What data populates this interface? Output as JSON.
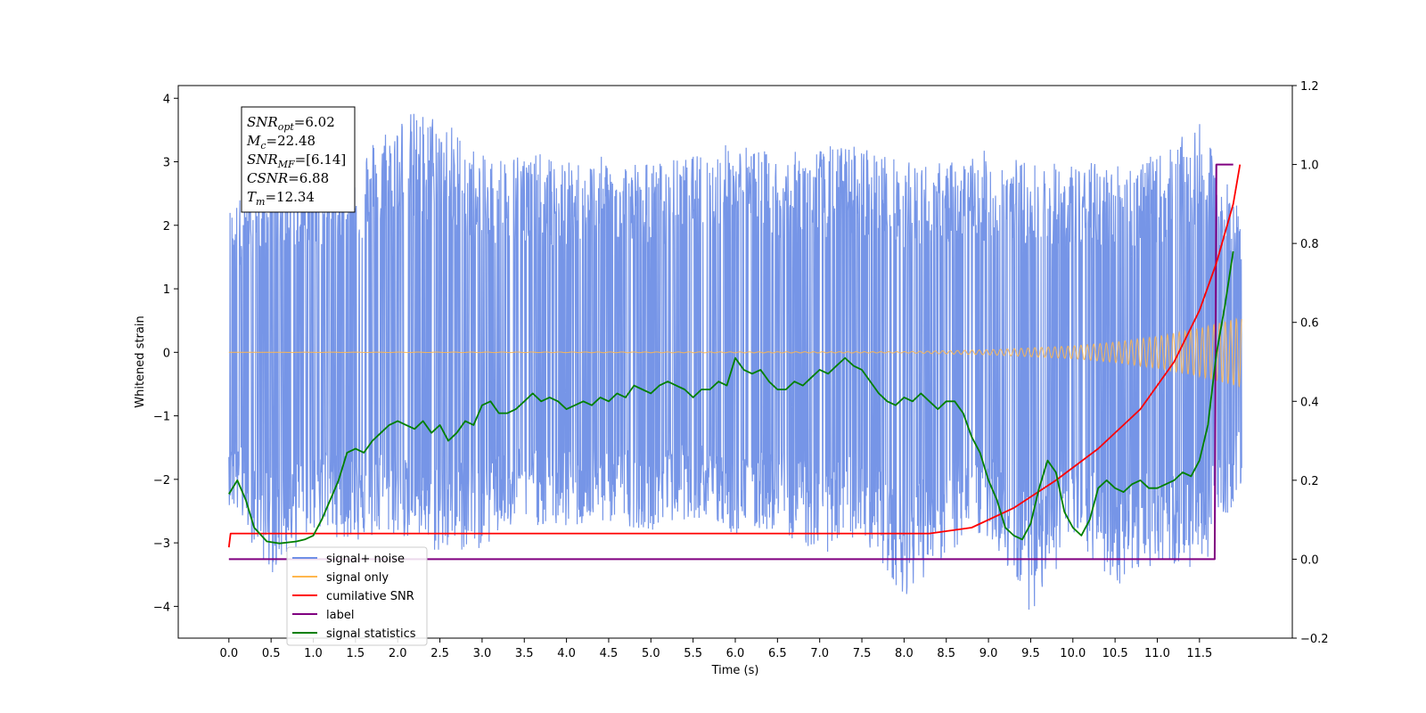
{
  "chart_data": {
    "type": "line",
    "xlabel": "Time (s)",
    "ylabel": "Whitened strain",
    "xlim": [
      -0.6,
      12.6
    ],
    "ylim": [
      -4.5,
      4.2
    ],
    "y2lim": [
      -0.2,
      1.2
    ],
    "x_ticks": [
      0.0,
      0.5,
      1.0,
      1.5,
      2.0,
      2.5,
      3.0,
      3.5,
      4.0,
      4.5,
      5.0,
      5.5,
      6.0,
      6.5,
      7.0,
      7.5,
      8.0,
      8.5,
      9.0,
      9.5,
      10.0,
      10.5,
      11.0,
      11.5
    ],
    "x_tick_labels": [
      "0.0",
      "0.5",
      "1.0",
      "1.5",
      "2.0",
      "2.5",
      "3.0",
      "3.5",
      "4.0",
      "4.5",
      "5.0",
      "5.5",
      "6.0",
      "6.5",
      "7.0",
      "7.5",
      "8.0",
      "8.5",
      "9.0",
      "9.5",
      "10.0",
      "10.5",
      "11.0",
      "11.5"
    ],
    "y_ticks": [
      -4,
      -3,
      -2,
      -1,
      0,
      1,
      2,
      3,
      4
    ],
    "y_tick_labels": [
      "−4",
      "−3",
      "−2",
      "−1",
      "0",
      "1",
      "2",
      "3",
      "4"
    ],
    "y2_ticks": [
      -0.2,
      0.0,
      0.2,
      0.4,
      0.6,
      0.8,
      1.0,
      1.2
    ],
    "y2_tick_labels": [
      "−0.2",
      "0.0",
      "0.2",
      "0.4",
      "0.6",
      "0.8",
      "1.0",
      "1.2"
    ],
    "grid": false,
    "legend_position": "lower-left",
    "series": [
      {
        "name": "signal+ noise",
        "axis": "left",
        "color": "#6f8fe6",
        "note_shape": "dense noise band",
        "x": [
          0.0,
          0.5,
          1.0,
          1.5,
          2.0,
          2.5,
          3.0,
          3.5,
          4.0,
          4.5,
          5.0,
          5.5,
          6.0,
          6.5,
          7.0,
          7.5,
          8.0,
          8.5,
          9.0,
          9.5,
          10.0,
          10.5,
          11.0,
          11.5,
          12.0
        ],
        "upper": [
          2.3,
          2.9,
          3.0,
          3.1,
          3.8,
          3.8,
          3.1,
          3.2,
          3.0,
          3.1,
          3.0,
          3.1,
          3.35,
          3.1,
          3.25,
          3.3,
          3.0,
          3.0,
          3.2,
          3.0,
          3.0,
          3.0,
          3.1,
          3.6,
          2.2
        ],
        "lower": [
          -2.4,
          -3.5,
          -2.8,
          -3.0,
          -2.9,
          -3.2,
          -3.1,
          -2.7,
          -2.8,
          -2.7,
          -2.8,
          -2.6,
          -2.9,
          -2.8,
          -3.2,
          -2.9,
          -3.85,
          -3.2,
          -2.9,
          -4.1,
          -3.0,
          -3.7,
          -3.3,
          -3.5,
          -2.1
        ]
      },
      {
        "name": "signal only",
        "axis": "left",
        "color": "#ffb74d",
        "x": [
          0.0,
          8.0,
          9.0,
          10.0,
          10.5,
          11.0,
          11.5,
          12.0
        ],
        "amplitude": [
          0.0,
          0.01,
          0.04,
          0.1,
          0.16,
          0.25,
          0.38,
          0.55
        ]
      },
      {
        "name": "cumilative SNR",
        "axis": "right",
        "color": "#ff0000",
        "x": [
          0.0,
          0.02,
          8.3,
          8.8,
          9.3,
          9.8,
          10.3,
          10.8,
          11.2,
          11.5,
          11.7,
          11.9,
          11.98
        ],
        "y": [
          0.03,
          0.065,
          0.065,
          0.08,
          0.13,
          0.2,
          0.28,
          0.38,
          0.5,
          0.63,
          0.75,
          0.9,
          1.0
        ]
      },
      {
        "name": "label",
        "axis": "right",
        "color": "#800080",
        "x": [
          0.0,
          11.68,
          11.7,
          11.9
        ],
        "y": [
          0.0,
          0.0,
          1.0,
          1.0
        ]
      },
      {
        "name": "signal statistics",
        "axis": "right",
        "color": "#008000",
        "x": [
          0.0,
          0.1,
          0.2,
          0.3,
          0.45,
          0.6,
          0.8,
          0.9,
          1.0,
          1.1,
          1.2,
          1.3,
          1.4,
          1.5,
          1.6,
          1.7,
          1.8,
          1.9,
          2.0,
          2.1,
          2.2,
          2.3,
          2.4,
          2.5,
          2.6,
          2.7,
          2.8,
          2.9,
          3.0,
          3.1,
          3.2,
          3.3,
          3.4,
          3.5,
          3.6,
          3.7,
          3.8,
          3.9,
          4.0,
          4.1,
          4.2,
          4.3,
          4.4,
          4.5,
          4.6,
          4.7,
          4.8,
          4.9,
          5.0,
          5.1,
          5.2,
          5.3,
          5.4,
          5.5,
          5.6,
          5.7,
          5.8,
          5.9,
          6.0,
          6.1,
          6.2,
          6.3,
          6.4,
          6.5,
          6.6,
          6.7,
          6.8,
          6.9,
          7.0,
          7.1,
          7.2,
          7.3,
          7.4,
          7.5,
          7.6,
          7.7,
          7.8,
          7.9,
          8.0,
          8.1,
          8.2,
          8.3,
          8.4,
          8.5,
          8.6,
          8.7,
          8.8,
          8.9,
          9.0,
          9.1,
          9.2,
          9.3,
          9.4,
          9.5,
          9.6,
          9.7,
          9.8,
          9.9,
          10.0,
          10.1,
          10.2,
          10.3,
          10.4,
          10.5,
          10.6,
          10.7,
          10.8,
          10.9,
          11.0,
          11.1,
          11.2,
          11.3,
          11.4,
          11.5,
          11.6,
          11.7,
          11.8,
          11.9
        ],
        "y": [
          0.165,
          0.2,
          0.15,
          0.08,
          0.045,
          0.04,
          0.045,
          0.05,
          0.06,
          0.1,
          0.15,
          0.2,
          0.27,
          0.28,
          0.27,
          0.3,
          0.32,
          0.34,
          0.35,
          0.34,
          0.33,
          0.35,
          0.32,
          0.34,
          0.3,
          0.32,
          0.35,
          0.34,
          0.39,
          0.4,
          0.37,
          0.37,
          0.38,
          0.4,
          0.42,
          0.4,
          0.41,
          0.4,
          0.38,
          0.39,
          0.4,
          0.39,
          0.41,
          0.4,
          0.42,
          0.41,
          0.44,
          0.43,
          0.42,
          0.44,
          0.45,
          0.44,
          0.43,
          0.41,
          0.43,
          0.43,
          0.45,
          0.44,
          0.51,
          0.48,
          0.47,
          0.48,
          0.45,
          0.43,
          0.43,
          0.45,
          0.44,
          0.46,
          0.48,
          0.47,
          0.49,
          0.51,
          0.49,
          0.48,
          0.45,
          0.42,
          0.4,
          0.39,
          0.41,
          0.4,
          0.42,
          0.4,
          0.38,
          0.4,
          0.4,
          0.37,
          0.31,
          0.27,
          0.2,
          0.15,
          0.08,
          0.06,
          0.05,
          0.09,
          0.18,
          0.25,
          0.22,
          0.12,
          0.08,
          0.06,
          0.1,
          0.18,
          0.2,
          0.18,
          0.17,
          0.19,
          0.2,
          0.18,
          0.18,
          0.19,
          0.2,
          0.22,
          0.21,
          0.25,
          0.34,
          0.52,
          0.64,
          0.78
        ]
      }
    ],
    "annotation": {
      "lines": [
        {
          "main": "SNR",
          "sub": "opt",
          "value": "=6.02"
        },
        {
          "main": "M",
          "sub": "c",
          "value": "=22.48"
        },
        {
          "main": "SNR",
          "sub": "MF",
          "value": "=[6.14]"
        },
        {
          "main": "CSNR",
          "sub": "",
          "value": "=6.88"
        },
        {
          "main": "T",
          "sub": "m",
          "value": "=12.34"
        }
      ]
    }
  }
}
